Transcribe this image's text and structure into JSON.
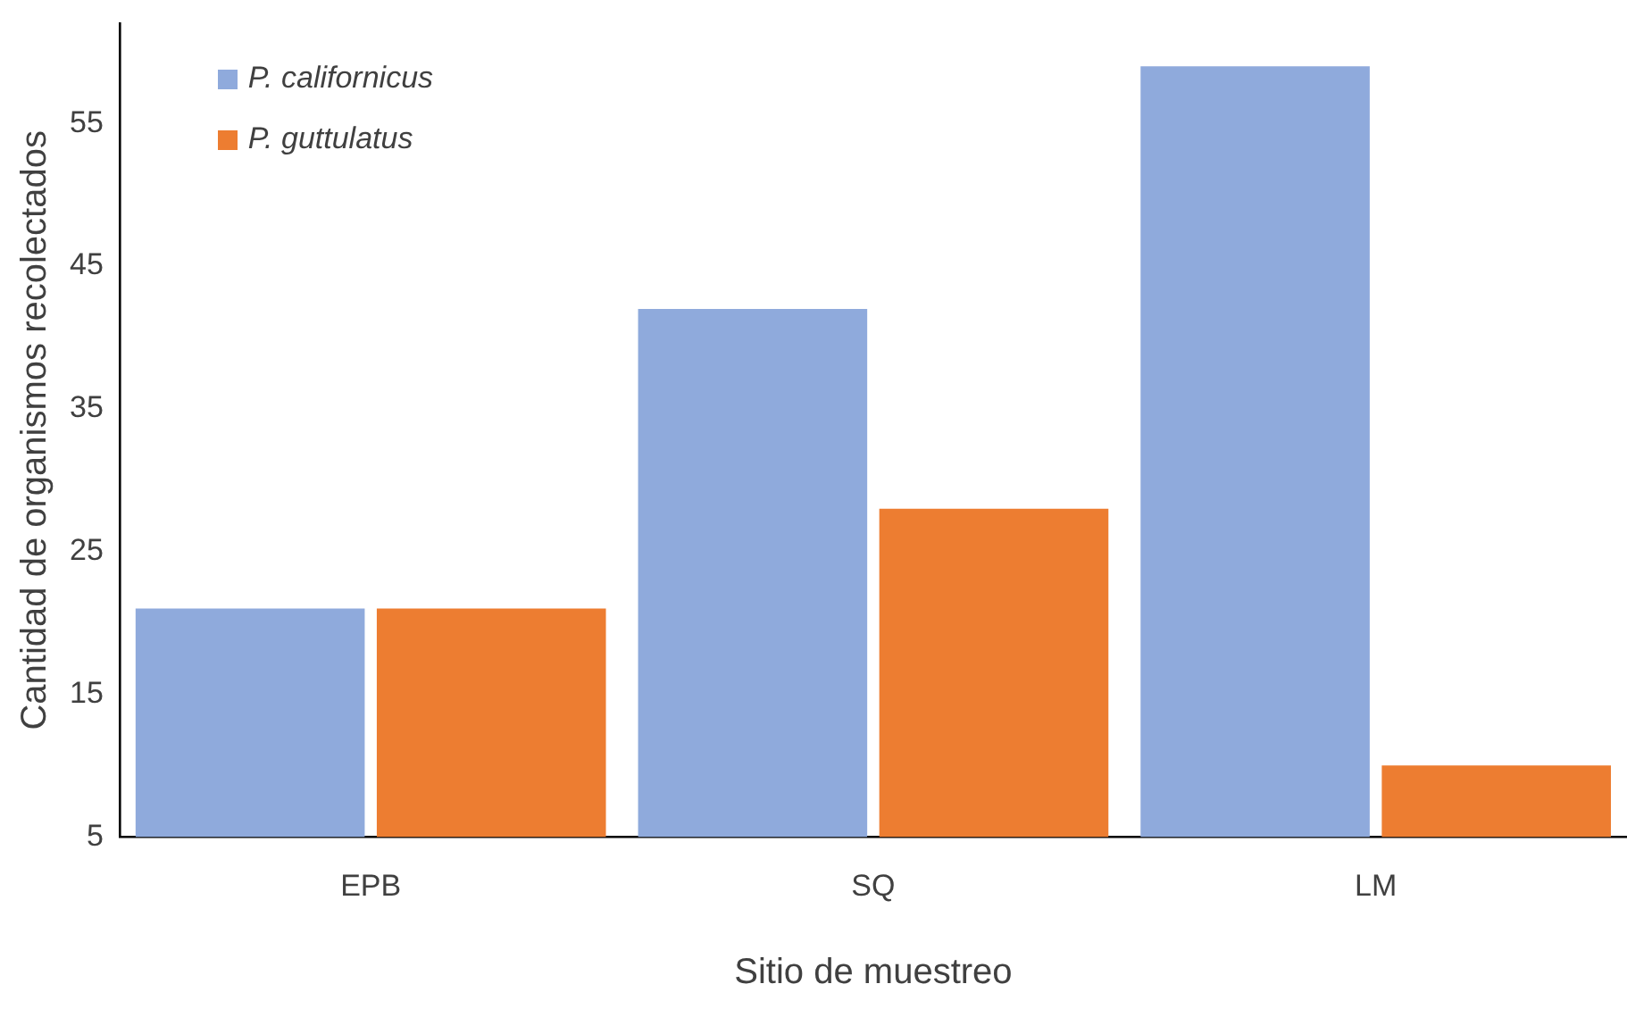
{
  "chart_data": {
    "type": "bar",
    "xlabel": "Sitio de muestreo",
    "ylabel": "Cantidad de organismos recolectados",
    "categories": [
      "EPB",
      "SQ",
      "LM"
    ],
    "series": [
      {
        "name": "P. californicus",
        "color": "#8faadc",
        "values": [
          21,
          42,
          59
        ]
      },
      {
        "name": "P. guttulatus",
        "color": "#ed7d31",
        "values": [
          21,
          28,
          10
        ]
      }
    ],
    "ylim": [
      5,
      62
    ],
    "yticks": [
      5,
      15,
      25,
      35,
      45,
      55
    ],
    "grid": false,
    "legend": "top left"
  }
}
